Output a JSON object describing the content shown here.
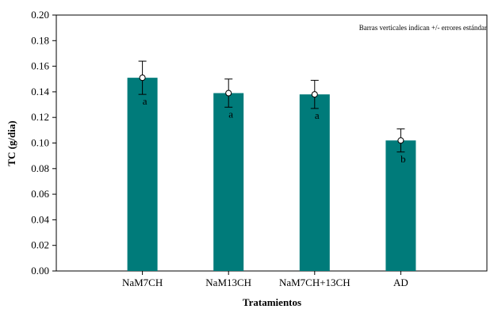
{
  "chart_data": {
    "type": "bar",
    "title": "",
    "xlabel": "Tratamientos",
    "ylabel": "TC (g/dia)",
    "note": "Barras verticales indican +/- errores estándar",
    "categories": [
      "NaM7CH",
      "NaM13CH",
      "NaM7CH+13CH",
      "AD"
    ],
    "series": [
      {
        "values": [
          0.151,
          0.139,
          0.138,
          0.102
        ],
        "errors": [
          0.013,
          0.011,
          0.011,
          0.009
        ],
        "letters": [
          "a",
          "a",
          "a",
          "b"
        ]
      }
    ],
    "ylim": [
      0,
      0.2
    ],
    "yticks": [
      "0.00",
      "0.02",
      "0.04",
      "0.06",
      "0.08",
      "0.10",
      "0.12",
      "0.14",
      "0.16",
      "0.18",
      "0.20"
    ],
    "bar_color": "#007B7A",
    "grid": false
  }
}
